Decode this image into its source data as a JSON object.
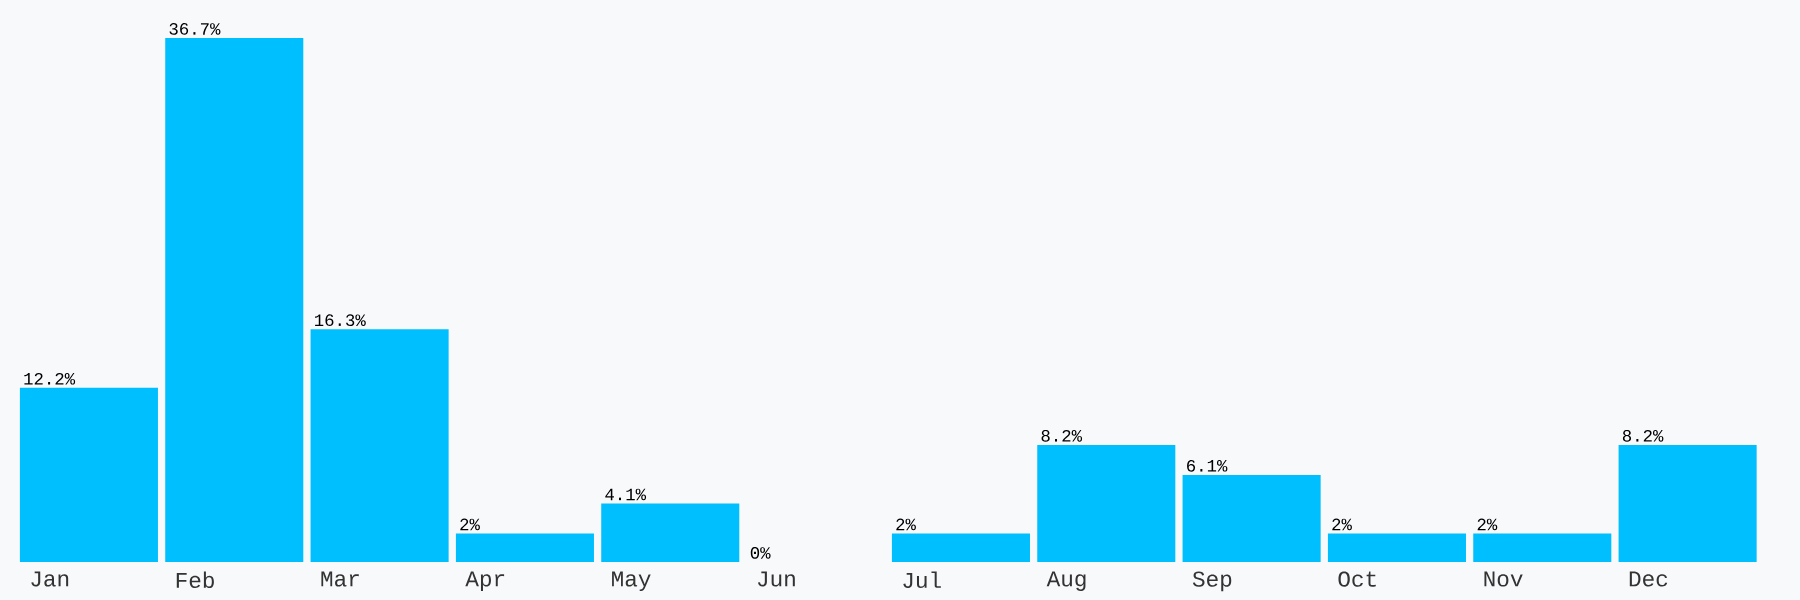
{
  "chart_data": {
    "type": "bar",
    "categories": [
      "Jan",
      "Feb",
      "Mar",
      "Apr",
      "May",
      "Jun",
      "Jul",
      "Aug",
      "Sep",
      "Oct",
      "Nov",
      "Dec"
    ],
    "values": [
      12.2,
      36.7,
      16.3,
      2,
      4.1,
      0,
      2,
      8.2,
      6.1,
      2,
      2,
      8.2
    ],
    "value_labels": [
      "12.2%",
      "36.7%",
      "16.3%",
      "2%",
      "4.1%",
      "0%",
      "2%",
      "8.2%",
      "6.1%",
      "2%",
      "2%",
      "8.2%"
    ],
    "color": "#00bfff"
  }
}
